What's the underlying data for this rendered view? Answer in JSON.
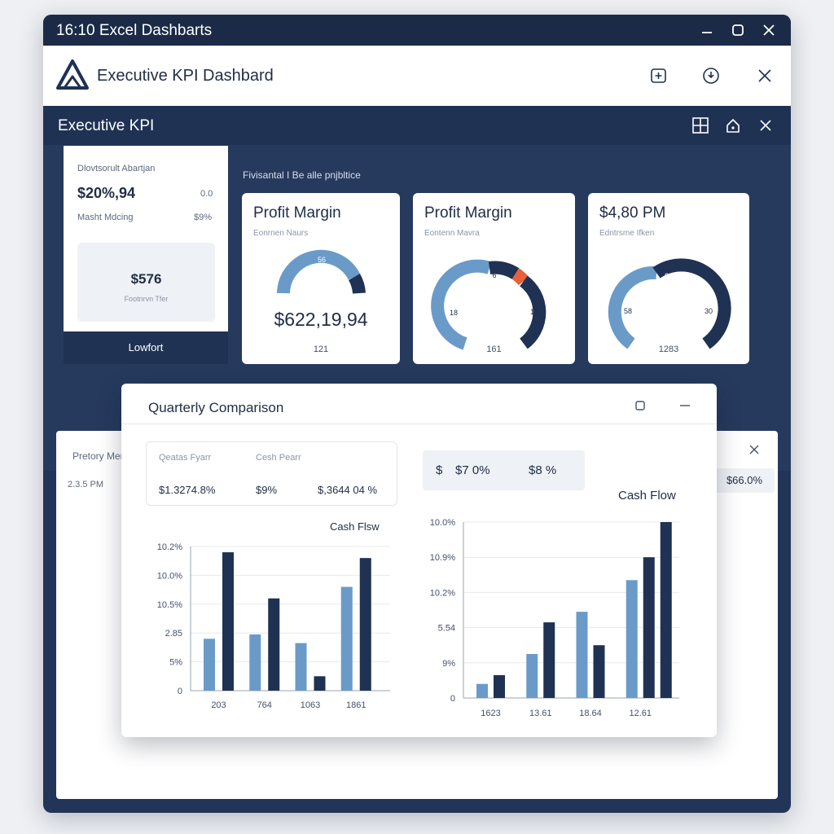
{
  "window": {
    "title": "16:10 Excel Dashbarts"
  },
  "header": {
    "title": "Executive KPI Dashbard"
  },
  "kpi_section": {
    "title": "Executive KPI",
    "label": "Fivisantal I Be alle pnjbltice"
  },
  "side_card": {
    "label1": "Dlovtsorult Abartjan",
    "value1": "$20%,94",
    "aside1": "0.0",
    "label2": "Masht Mdcing",
    "aside2": "$9%",
    "inner_value": "$576",
    "inner_label": "Footnrvn Tfer",
    "footer": "Lowfort"
  },
  "gauges": [
    {
      "title": "Profit Margin",
      "subtitle": "Eonrnen Naurs",
      "top_label": "56",
      "value": "$622,19,94",
      "footer": "121",
      "fill": 0.5
    },
    {
      "title": "Profit Margin",
      "subtitle": "Eontenn Mavra",
      "top_label": "6",
      "left_label": "18",
      "right_label": "18",
      "footer": "161",
      "fill": 0.55
    },
    {
      "title": "$4,80 PM",
      "subtitle": "Edntrsme Ifken",
      "top_label": "80",
      "left_label": "58",
      "right_label": "30",
      "footer": "1283",
      "fill": 0.35
    }
  ],
  "bottom_panel": {
    "label": "Pretory Mer",
    "value": "2.3.5 PM",
    "badge": "$66.0%"
  },
  "modal": {
    "title": "Quarterly Comparison",
    "stats": {
      "label1": "Qeatas Fyarr",
      "label2": "Cesh Pearr",
      "value1": "$1.3274.8%",
      "value2": "$9%",
      "value3": "$,3644 04 %"
    },
    "pill": {
      "symbol": "$",
      "value1": "$7 0%",
      "value2": "$8 %"
    }
  },
  "colors": {
    "dark": "#1f3254",
    "light": "#6a9bc8",
    "accent": "#e8603a"
  },
  "chart_data": [
    {
      "type": "bar",
      "title": "Cash Flsw",
      "yticks": [
        "0",
        "5%",
        "2.85",
        "10.5%",
        "10.0%",
        "10.2%"
      ],
      "xlabels": [
        "203",
        "764",
        "1063",
        "1861"
      ],
      "ylim": [
        0,
        100
      ],
      "series": [
        {
          "values": [
            36,
            39,
            33,
            72
          ]
        },
        {
          "values": [
            96,
            64,
            10,
            92
          ]
        }
      ]
    },
    {
      "type": "bar",
      "title": "Cash Flow",
      "yticks": [
        "0",
        "9%",
        "5.54",
        "10.2%",
        "10.9%",
        "10.0%"
      ],
      "xlabels": [
        "1623",
        "13.61",
        "18.64",
        "12.61"
      ],
      "ylim": [
        0,
        100
      ],
      "series": [
        {
          "values": [
            8,
            25,
            49,
            67
          ]
        },
        {
          "values": [
            13,
            43,
            30,
            80
          ]
        },
        {
          "values": [
            0,
            0,
            0,
            100
          ]
        }
      ]
    }
  ]
}
